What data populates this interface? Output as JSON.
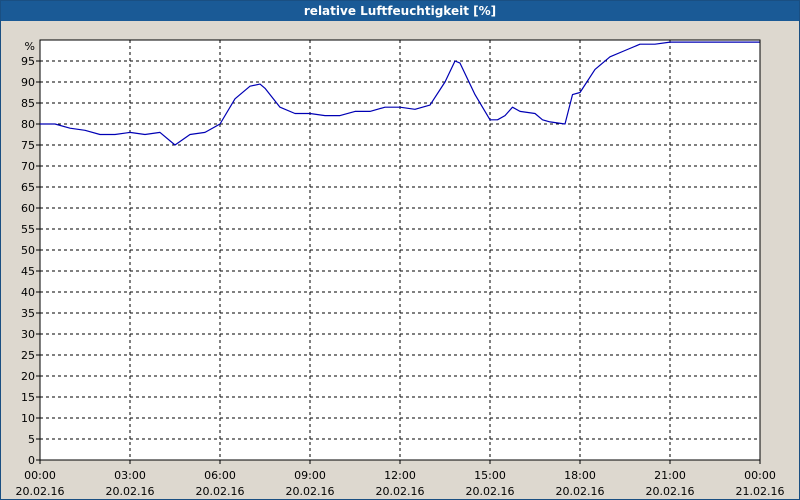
{
  "window": {
    "title": "relative Luftfeuchtigkeit [%]"
  },
  "colors": {
    "header_bg": "#1a5a96",
    "page_bg": "#ddd8cf",
    "plot_bg": "#ffffff",
    "grid": "#000000",
    "series": "#0000b4"
  },
  "chart_data": {
    "type": "line",
    "title": "relative Luftfeuchtigkeit [%]",
    "ylabel": "%",
    "ylim": [
      0,
      100
    ],
    "y_ticks": [
      0,
      5,
      10,
      15,
      20,
      25,
      30,
      35,
      40,
      45,
      50,
      55,
      60,
      65,
      70,
      75,
      80,
      85,
      90,
      95
    ],
    "xlim": [
      "20.02.16 00:00",
      "21.02.16 00:00"
    ],
    "x_ticks": [
      {
        "time": "00:00",
        "date": "20.02.16"
      },
      {
        "time": "03:00",
        "date": "20.02.16"
      },
      {
        "time": "06:00",
        "date": "20.02.16"
      },
      {
        "time": "09:00",
        "date": "20.02.16"
      },
      {
        "time": "12:00",
        "date": "20.02.16"
      },
      {
        "time": "15:00",
        "date": "20.02.16"
      },
      {
        "time": "18:00",
        "date": "20.02.16"
      },
      {
        "time": "21:00",
        "date": "20.02.16"
      },
      {
        "time": "00:00",
        "date": "21.02.16"
      }
    ],
    "grid": true,
    "series": [
      {
        "x": [
          "00:00",
          "00:30",
          "01:00",
          "01:30",
          "02:00",
          "02:30",
          "03:00",
          "03:30",
          "04:00",
          "04:30",
          "05:00",
          "05:30",
          "06:00",
          "06:30",
          "07:00",
          "07:20",
          "07:30",
          "08:00",
          "08:30",
          "09:00",
          "09:30",
          "10:00",
          "10:30",
          "11:00",
          "11:30",
          "12:00",
          "12:30",
          "13:00",
          "13:30",
          "13:50",
          "14:00",
          "14:30",
          "15:00",
          "15:15",
          "15:30",
          "15:45",
          "16:00",
          "16:30",
          "16:45",
          "17:00",
          "17:30",
          "17:45",
          "18:00",
          "18:30",
          "19:00",
          "19:30",
          "20:00",
          "20:30",
          "21:00",
          "21:30",
          "22:00",
          "23:00",
          "23:59"
        ],
        "values": [
          80,
          80,
          79,
          78.5,
          77.5,
          77.5,
          78,
          77.5,
          78,
          75,
          77.5,
          78,
          80,
          86,
          89,
          89.5,
          88.5,
          84,
          82.5,
          82.5,
          82,
          82,
          83,
          83,
          84,
          84,
          83.5,
          84.5,
          90,
          95,
          94.5,
          87,
          81,
          81,
          82,
          84,
          83,
          82.5,
          81,
          80.5,
          80,
          87,
          87.5,
          93,
          96,
          97.5,
          99,
          99,
          99.5,
          99.5,
          99.5,
          99.5,
          99.5
        ]
      }
    ]
  }
}
